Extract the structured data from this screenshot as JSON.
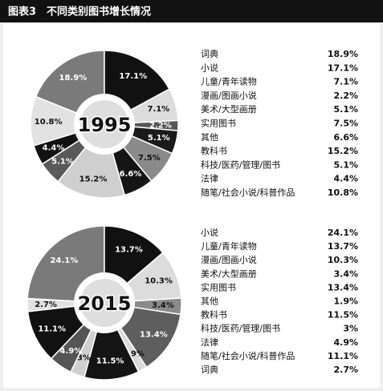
{
  "header": {
    "title": "图表3　不同类别图书增长情况"
  },
  "chart_data": [
    {
      "type": "pie",
      "title": "1995",
      "categories": [
        "词典",
        "小说",
        "儿童/青年读物",
        "漫画/图画小说",
        "美术/大型画册",
        "实用图书",
        "其他",
        "教科书",
        "科技/医药/管理/图书",
        "法律",
        "随笔/社会小说/科普作品"
      ],
      "values": [
        18.9,
        17.1,
        7.1,
        2.2,
        5.1,
        7.5,
        6.6,
        15.2,
        5.1,
        4.4,
        10.8
      ],
      "value_labels": [
        "18.9%",
        "17.1%",
        "7.1%",
        "2.2%",
        "5.1%",
        "7.5%",
        "6.6%",
        "15.2%",
        "5.1%",
        "4.4%",
        "10.8%"
      ],
      "colors": [
        "#7a7a7a",
        "#111111",
        "#dcdcdc",
        "#555555",
        "#1a1a1a",
        "#8a8a8a",
        "#151515",
        "#cfcfcf",
        "#595959",
        "#111111",
        "#e2e2e2"
      ]
    },
    {
      "type": "pie",
      "title": "2015",
      "categories": [
        "小说",
        "儿童/青年读物",
        "漫画/图画小说",
        "美术/大型画册",
        "实用图书",
        "其他",
        "教科书",
        "科技/医药/管理/图书",
        "法律",
        "随笔/社会小说/科普作品",
        "词典"
      ],
      "values": [
        24.1,
        13.7,
        10.3,
        3.4,
        13.4,
        1.9,
        11.5,
        3,
        4.9,
        11.1,
        2.7
      ],
      "value_labels": [
        "24.1%",
        "13.7%",
        "10.3%",
        "3.4%",
        "13.4%",
        "1.9%",
        "11.5%",
        "3%",
        "4.9%",
        "11.1%",
        "2.7%"
      ],
      "colors": [
        "#7a7a7a",
        "#111111",
        "#dcdcdc",
        "#8a8a8a",
        "#5e5e5e",
        "#dadada",
        "#141414",
        "#cfcfcf",
        "#555555",
        "#111111",
        "#e0e0e0"
      ]
    }
  ]
}
